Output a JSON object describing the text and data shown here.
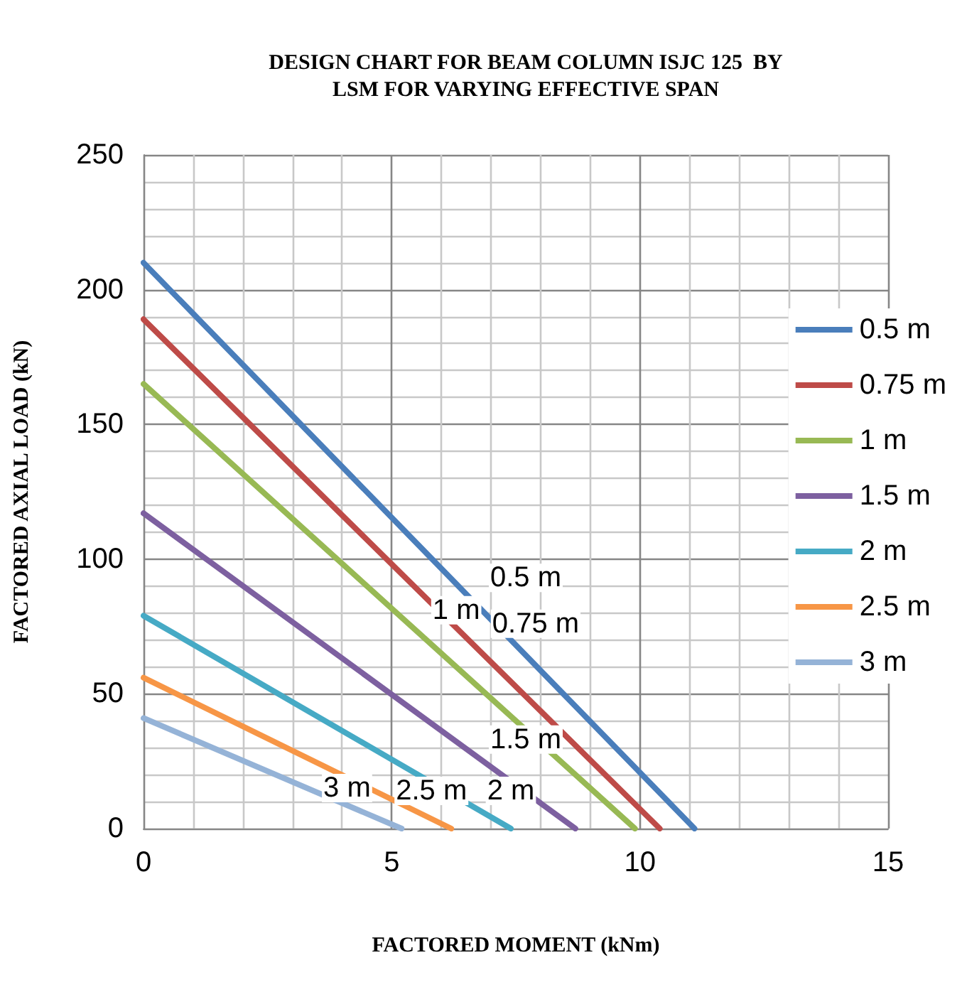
{
  "chart_data": {
    "type": "line",
    "title": "DESIGN CHART FOR BEAM COLUMN ISJC 125  BY\nLSM FOR VARYING EFFECTIVE SPAN",
    "xlabel": "FACTORED MOMENT (kNm)",
    "ylabel": "FACTORED AXIAL LOAD (kN)",
    "series": [
      {
        "name": "0.5 m",
        "color": "#4a7ebb",
        "x": [
          0,
          11.1
        ],
        "values": [
          210,
          0
        ]
      },
      {
        "name": "0.75 m",
        "color": "#be4b48",
        "x": [
          0,
          10.4
        ],
        "values": [
          189,
          0
        ]
      },
      {
        "name": "1 m",
        "color": "#98b954",
        "x": [
          0,
          9.9
        ],
        "values": [
          165,
          0
        ]
      },
      {
        "name": "1.5 m",
        "color": "#7d60a0",
        "x": [
          0,
          8.7
        ],
        "values": [
          117,
          0
        ]
      },
      {
        "name": "2 m",
        "color": "#46aac5",
        "x": [
          0,
          7.4
        ],
        "values": [
          79,
          0
        ]
      },
      {
        "name": "2.5 m",
        "color": "#f79646",
        "x": [
          0,
          6.2
        ],
        "values": [
          56,
          0
        ]
      },
      {
        "name": "3 m",
        "color": "#95b3d7",
        "x": [
          0,
          5.2
        ],
        "values": [
          41,
          0
        ]
      }
    ],
    "annotations": [
      "0.5 m",
      "0.75 m",
      "1 m",
      "1.5 m",
      "2 m",
      "2.5 m",
      "3 m"
    ],
    "xlim": [
      0,
      15
    ],
    "xticks": [
      0,
      5,
      10,
      15
    ],
    "ylim": [
      0,
      250
    ],
    "yticks": [
      0,
      50,
      100,
      150,
      200,
      250
    ],
    "grid": true,
    "legend": "right",
    "marker": "none",
    "line_style": "solid"
  }
}
